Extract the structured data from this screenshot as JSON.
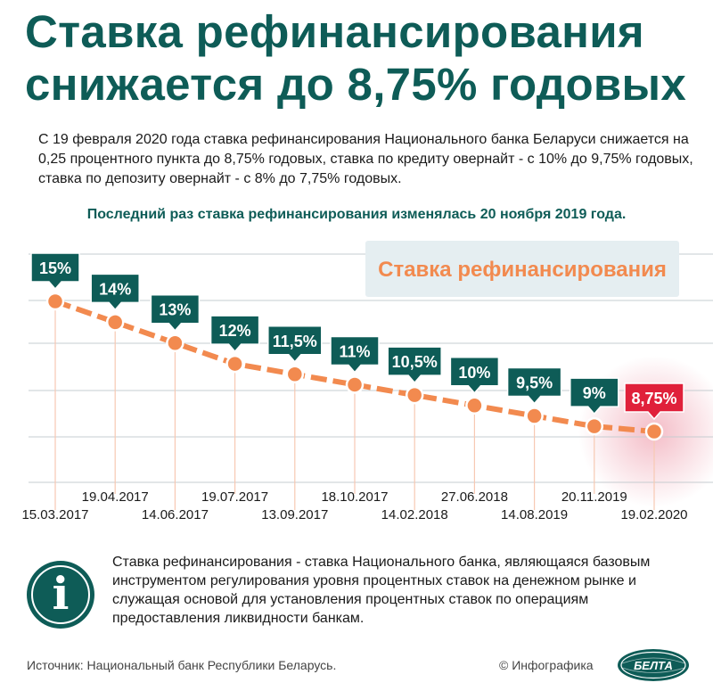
{
  "header": {
    "title_line1": "Ставка рефинансирования",
    "title_line2": "снижается до 8,75% годовых"
  },
  "intro": {
    "text": "С 19 февраля 2020 года ставка рефинансирования Национального банка Беларуси снижается на 0,25 процентного пункта до 8,75% годовых, ставка по кредиту овернайт - с 10% до 9,75% годовых, ставка по депозиту овернайт - с 8% до 7,75% годовых."
  },
  "last_change": {
    "text": "Последний раз ставка рефинансирования изменялась 20 ноября 2019 года."
  },
  "chart_data": {
    "type": "line",
    "title": "",
    "legend": "Ставка рефинансирования",
    "legend_position": "top-right",
    "x": [
      "15.03.2017",
      "19.04.2017",
      "14.06.2017",
      "19.07.2017",
      "13.09.2017",
      "18.10.2017",
      "14.02.2018",
      "27.06.2018",
      "14.08.2019",
      "20.11.2019",
      "19.02.2020"
    ],
    "values": [
      15,
      14,
      13,
      12,
      11.5,
      11,
      10.5,
      10,
      9.5,
      9,
      8.75
    ],
    "value_labels": [
      "15%",
      "14%",
      "13%",
      "12%",
      "11,5%",
      "11%",
      "10,5%",
      "10%",
      "9,5%",
      "9%",
      "8,75%"
    ],
    "highlight_last": true,
    "grid": true,
    "colors": {
      "line": "#f28a4f",
      "label_bg": "#0e5c57",
      "highlight_bg": "#e0203a",
      "highlight_glow": "#f3b9c4",
      "legend_bg": "#e5eef1",
      "legend_text": "#f28a4f",
      "grid": "#c6ccd0",
      "drop_line": "#f7c9b3"
    }
  },
  "info": {
    "icon": "info-icon",
    "text": "Ставка рефинансирования - ставка Национального банка, являющаяся базовым инструментом регулирования уровня процентных ставок на денежном рынке и служащая основой для установления процентных ставок по операциям предоставления ликвидности банкам."
  },
  "footer": {
    "source": "Источник: Национальный банк Республики Беларусь.",
    "copyright": "© Инфографика",
    "logo_text": "БЕЛТА"
  }
}
